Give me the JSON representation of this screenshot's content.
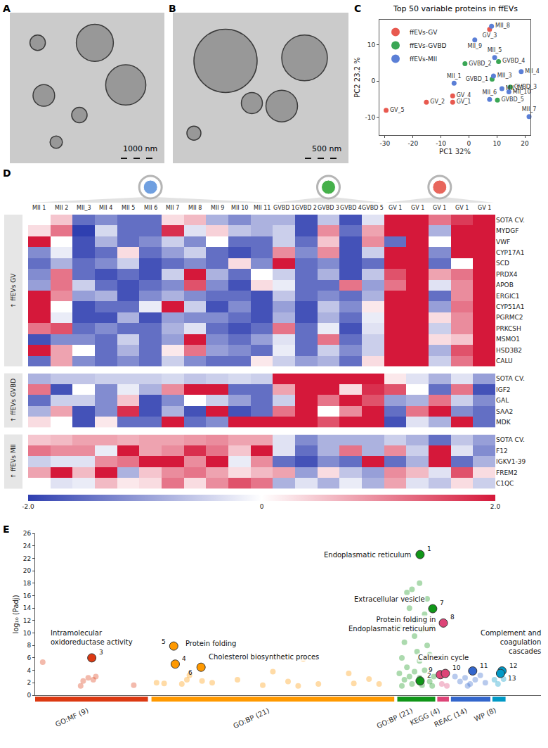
{
  "chart_data": [
    {
      "panel": "A",
      "type": "image",
      "scale_bar": "1000 nm"
    },
    {
      "panel": "B",
      "type": "image",
      "scale_bar": "500 nm"
    },
    {
      "panel": "C",
      "type": "scatter",
      "title": "Top 50 variable proteins in ffEVs",
      "xlabel": "PC1 32%",
      "ylabel": "PC2 23.2 %",
      "xlim": [
        -32,
        22
      ],
      "ylim": [
        -15,
        17
      ],
      "xticks": [
        -30,
        -20,
        -10,
        0,
        10,
        20
      ],
      "yticks": [
        -10,
        0,
        10
      ],
      "grid": false,
      "legend": "top-left",
      "series": [
        {
          "name": "ffEVs-GV",
          "color": "#e8594f",
          "labels": [
            "GV_1",
            "GV_2",
            "GV_3",
            "GV_4",
            "GV_5"
          ],
          "x": [
            -5.8,
            -15.2,
            7.4,
            -5.8,
            -29.6
          ],
          "y": [
            -5.9,
            -5.9,
            14.3,
            -4.1,
            -8.1
          ]
        },
        {
          "name": "ffEVs-GVBD",
          "color": "#3aa655",
          "labels": [
            "GVBD_1",
            "GVBD_2",
            "GVBD_3",
            "GVBD_4",
            "GVBD_5"
          ],
          "x": [
            8.3,
            -1.4,
            14.8,
            10.6,
            10.2
          ],
          "y": [
            0.5,
            4.8,
            -1.7,
            5.4,
            -5.3
          ]
        },
        {
          "name": "ffEVs-MII",
          "color": "#5b7fd6",
          "labels": [
            "MII_1",
            "MII_3",
            "MII_4",
            "MII_5",
            "MII_6",
            "MII_7",
            "MII_8",
            "MII_9",
            "MII_10",
            "MII_11"
          ],
          "x": [
            -5.3,
            8.8,
            18.7,
            9.2,
            7.4,
            21.5,
            8.1,
            2.1,
            14.3,
            11.8
          ],
          "y": [
            -0.6,
            1.4,
            2.6,
            6.5,
            -5.1,
            -9.9,
            15.2,
            11.4,
            -3.0,
            -2.1
          ]
        }
      ]
    },
    {
      "panel": "D",
      "type": "heatmap",
      "columns": [
        "MII 1",
        "MII 2",
        "MII_3",
        "MII 4",
        "MII 5",
        "MII 6",
        "MII 7",
        "MII 8",
        "MII 9",
        "MII 10",
        "MII 11",
        "GVBD 1",
        "GVBD 2",
        "GVBD 3",
        "GVBD 4",
        "GVBD 5",
        "GV 1",
        "GV 1",
        "GV 1",
        "GV 1",
        "GV 1"
      ],
      "column_groups": [
        {
          "count": 11,
          "color": "#6f9fe0"
        },
        {
          "count": 5,
          "color": "#45b04a"
        },
        {
          "count": 5,
          "color": "#e8665c"
        }
      ],
      "zlim": [
        -2,
        2
      ],
      "colorbar_ticks": [
        {
          "value": -2,
          "label": "-2.0"
        },
        0,
        {
          "value": 2,
          "label": "2.0"
        }
      ],
      "row_groups": [
        {
          "label": "↑ ffEVs GV",
          "rows": [
            "SOTA CV.",
            "MYDGF",
            "VWF",
            "CYP17A1",
            "SCD",
            "PRDX4",
            "APOB",
            "ERGIC1",
            "CYP51A1",
            "PGRMC2",
            "PRKCSH",
            "MSMO1",
            "HSD3B2",
            "CALU"
          ],
          "values": [
            [
              0,
              0.5,
              -1.5,
              -1.2,
              -1.5,
              -1.5,
              0.3,
              0.6,
              -0.8,
              -1.2,
              -0.8,
              -0.8,
              -1.8,
              -0.6,
              -1.8,
              -0.3,
              2,
              2,
              1.2,
              1.7,
              2
            ],
            [
              0.3,
              1.2,
              -2,
              -0.4,
              -1.5,
              -1.5,
              1.8,
              -0.3,
              0.4,
              -0.6,
              -0.8,
              -0.5,
              -1.8,
              1,
              -1.5,
              0.8,
              2,
              2,
              -0.8,
              2,
              2
            ],
            [
              2,
              0,
              -1.8,
              -0.8,
              -1.5,
              -1.2,
              -0.5,
              -1.2,
              0,
              -1.5,
              -1.5,
              -0.5,
              -1.5,
              0.5,
              -1.8,
              1,
              -1.5,
              2,
              0,
              2,
              2
            ],
            [
              -1.2,
              -0.2,
              -1.8,
              -1.5,
              0.3,
              -1.5,
              -1,
              -0.5,
              -1.5,
              -1.8,
              -1.5,
              1,
              -1.2,
              1,
              -1.8,
              -0.5,
              2,
              2,
              -1.2,
              2,
              2
            ],
            [
              -1.5,
              -0.8,
              -1.5,
              -1.2,
              -0.5,
              -1.8,
              -1.5,
              -1.2,
              -1.5,
              0.3,
              -1.2,
              2,
              -1.5,
              -1.2,
              -1.8,
              -1.5,
              2,
              2,
              -1.5,
              0,
              2
            ],
            [
              -1.2,
              1.2,
              -1.5,
              -1.8,
              -1.5,
              -1.8,
              -0.5,
              2,
              -0.8,
              -1.5,
              0,
              -0.5,
              -1.5,
              -0.8,
              -1.8,
              -0.6,
              1.5,
              2,
              0.8,
              1.2,
              2
            ],
            [
              -1,
              1.2,
              -0.5,
              -1.5,
              -1.8,
              -1.5,
              -1.2,
              1.5,
              -1.2,
              -1.8,
              0.3,
              -0.2,
              -1.5,
              -1.5,
              1.2,
              -1,
              1.2,
              2,
              -0.3,
              1,
              2
            ],
            [
              2,
              1,
              -1,
              -0.8,
              -1.8,
              -1.2,
              -0.8,
              -1.2,
              -1.5,
              -1.5,
              -1.8,
              -0.6,
              -1.5,
              -1.2,
              -1.5,
              -0.8,
              2,
              2,
              -1.5,
              1,
              2
            ],
            [
              2,
              0,
              -1.8,
              -1.5,
              -1.5,
              -0.2,
              2,
              -0.5,
              -1.8,
              -1.2,
              -1.8,
              -1,
              -1.8,
              -0.6,
              -1.2,
              0.2,
              2,
              2,
              -1,
              1.2,
              2
            ],
            [
              2,
              -0.2,
              -1.8,
              -1.8,
              -0.8,
              -1.8,
              -1,
              -1.2,
              -1.2,
              -1.5,
              -1.8,
              -0.8,
              -1.8,
              -0.8,
              -1.5,
              -0.2,
              2,
              2,
              0.3,
              1,
              2
            ],
            [
              1.2,
              1.5,
              -1.5,
              -1.2,
              -1.5,
              -1.5,
              -0.8,
              -0.3,
              -1.5,
              -1.8,
              -1.5,
              1.2,
              -1.5,
              -0.2,
              -1.8,
              -0.3,
              2,
              2,
              -0.5,
              1,
              2
            ],
            [
              -1.8,
              -1.2,
              -1.2,
              -1.5,
              -0.5,
              -1.5,
              -1,
              2,
              -1.2,
              -1.5,
              -1,
              -0.3,
              -1.5,
              1.2,
              -1.5,
              -0.5,
              2,
              2,
              0.3,
              0.5,
              2
            ],
            [
              2,
              0.8,
              0,
              -1.5,
              -0.8,
              -1.5,
              0.2,
              1.2,
              -1,
              -1.2,
              -1.5,
              -0.2,
              -1.5,
              -0.5,
              -1.2,
              -0.5,
              2,
              2,
              -0.8,
              1.5,
              2
            ],
            [
              -1.5,
              0.8,
              -1.2,
              -1.5,
              -1.2,
              -1.5,
              -0.5,
              -1.2,
              -1.5,
              -1.5,
              0.2,
              -0.5,
              -1,
              -0.8,
              -1.5,
              0.3,
              2,
              2,
              -0.5,
              1.2,
              2
            ]
          ]
        },
        {
          "label": "↑ ffEVs GVBD",
          "rows": [
            "SOTA CV.",
            "IGF2",
            "GAL",
            "SAA2",
            "MDK"
          ],
          "values": [
            [
              -0.8,
              -0.6,
              -0.6,
              -0.5,
              -0.5,
              -0.5,
              -0.4,
              -0.6,
              -0.5,
              -0.4,
              -0.5,
              2,
              2,
              2,
              2,
              2,
              0.2,
              -0.3,
              -0.8,
              -0.3,
              -1
            ],
            [
              1.2,
              -1.8,
              0,
              -1.2,
              -0.2,
              -0.8,
              1,
              2,
              2,
              -1.5,
              -1.5,
              0.8,
              2,
              2,
              0.3,
              1.8,
              1.5,
              0,
              -1.5,
              1.2,
              -1.8
            ],
            [
              -1.5,
              -0.5,
              -0.5,
              -1.2,
              0.5,
              -1.8,
              -1.2,
              0,
              -0.5,
              -1,
              -1.5,
              -0.5,
              2,
              1.2,
              2,
              1.5,
              -1,
              -0.8,
              1.2,
              -0.5,
              -1.2
            ],
            [
              -0.8,
              0.8,
              -1.8,
              -1.2,
              1.8,
              -1.8,
              -0.8,
              -1.8,
              2,
              -1.8,
              -1.5,
              1.2,
              2,
              0,
              1,
              2,
              -1.5,
              1.2,
              2,
              -1.2,
              -1.5
            ],
            [
              0.3,
              0,
              -1.8,
              0.2,
              -1.5,
              -1.5,
              2,
              -1.5,
              -1.2,
              2,
              2,
              2,
              2,
              1.5,
              2,
              2,
              -1.8,
              -0.3,
              -0.8,
              2,
              -1.5
            ]
          ]
        },
        {
          "label": "↑ ffEVs MII",
          "rows": [
            "SOTA CV.",
            "F12",
            "IGKV1-39",
            "FREM2",
            "C1QC"
          ],
          "values": [
            [
              0.5,
              0.6,
              0.8,
              0.8,
              0.7,
              0.8,
              0.8,
              0.9,
              1,
              0.8,
              0.8,
              -0.3,
              -1.2,
              -0.8,
              -0.8,
              -0.8,
              -0.5,
              -0.8,
              -1.5,
              -0.6,
              -1
            ],
            [
              1.2,
              1,
              1,
              -0.2,
              2,
              0.8,
              1,
              1.8,
              1.2,
              0.5,
              2,
              -0.3,
              -1.5,
              -0.8,
              1.2,
              -0.8,
              1,
              -0.5,
              2,
              -0.3,
              -1.2
            ],
            [
              -0.5,
              -0.3,
              -0.3,
              1,
              1.2,
              2,
              2,
              1,
              2,
              -0.2,
              1,
              -1.5,
              -1.8,
              -1.2,
              -1.5,
              2,
              -1.5,
              -0.8,
              2,
              -1.5,
              -0.8
            ],
            [
              0.8,
              2,
              0.6,
              2,
              -0.8,
              0.5,
              1,
              1.2,
              0.8,
              0.3,
              0.6,
              0.8,
              -1,
              0.3,
              -0.6,
              -1,
              1,
              0.6,
              -0.3,
              1.5,
              0.3
            ],
            [
              0,
              -0.3,
              -0.2,
              0.6,
              0.2,
              0.3,
              1.2,
              0.3,
              1,
              1.5,
              1.2,
              -0.8,
              -0.3,
              -0.8,
              -0.2,
              -0.8,
              0.8,
              -0.3,
              -0.6,
              0.3,
              -0.5
            ]
          ]
        }
      ]
    },
    {
      "panel": "E",
      "type": "scatter",
      "ylabel": "log₁₀ (Padj)",
      "xlim": [
        0,
        100
      ],
      "ylim": [
        0,
        26
      ],
      "yticks": [
        0,
        2,
        4,
        6,
        8,
        10,
        12,
        14,
        16,
        18,
        20,
        22,
        24,
        26
      ],
      "grid": false,
      "tick_labels": "y",
      "sources": [
        {
          "name": "GO:MF (9)",
          "color": "#dc3912",
          "range": [
            0,
            22.3
          ],
          "x": [
            1.5,
            9,
            9.5,
            10.5,
            11.5,
            12,
            19.5
          ],
          "y": [
            5.3,
            1.5,
            2.3,
            2.8,
            2.5,
            3.0,
            1.6
          ]
        },
        {
          "name": "GO:BP (21)",
          "color": "#ff9900",
          "range": [
            23,
            71
          ],
          "x": [
            24,
            25.5,
            29,
            30,
            30.5,
            33,
            35,
            40,
            45,
            47,
            50,
            52,
            53,
            56,
            62,
            63,
            66,
            68
          ],
          "y": [
            2.0,
            1.9,
            1.8,
            2.5,
            3.2,
            2.3,
            2.0,
            2.5,
            1.6,
            3.8,
            2.2,
            1.5,
            5.8,
            1.8,
            3.5,
            1.9,
            2.6,
            1.8
          ]
        },
        {
          "name": "GO:BP (21)",
          "color": "#109618",
          "range": [
            71.6,
            79.1
          ],
          "x": [
            72,
            72.5,
            73,
            73.5,
            74,
            74.5,
            75,
            75,
            75.5,
            76,
            76.5,
            77,
            77.5,
            77.5,
            78,
            78.5,
            72,
            73,
            74,
            76,
            77,
            78,
            75,
            78.8,
            72.5,
            74.5,
            76.5,
            78.5,
            73.5,
            76
          ],
          "y": [
            11,
            6,
            8.5,
            4.5,
            14,
            17,
            12,
            9.5,
            7,
            5.5,
            10.5,
            13,
            8,
            15.5,
            6.5,
            11,
            3.5,
            2.5,
            3,
            2.8,
            4,
            2.2,
            3.8,
            3,
            1.5,
            1.8,
            1.6,
            1.5,
            16.5,
            18
          ]
        },
        {
          "name": "KEGG (4)",
          "color": "#dd4477",
          "range": [
            79.5,
            81.8
          ],
          "x": [
            80.4,
            81.4
          ],
          "y": [
            1.8,
            1.5
          ]
        },
        {
          "name": "REAC (14)",
          "color": "#3366cc",
          "range": [
            82.2,
            90
          ],
          "x": [
            83,
            84,
            85,
            86,
            87,
            88,
            89,
            85.5
          ],
          "y": [
            3.0,
            2.2,
            2.8,
            1.8,
            2.5,
            3.2,
            2.0,
            1.5
          ]
        },
        {
          "name": "WP (8)",
          "color": "#0099c6",
          "range": [
            90.4,
            93
          ],
          "x": [
            90.8,
            91.5,
            92.6
          ],
          "y": [
            2.5,
            1.8,
            2.6
          ]
        }
      ],
      "highlighted": [
        {
          "label": "1",
          "term": "Endoplasmatic reticulum",
          "x": 76.1,
          "y": 22.6
        },
        {
          "label": "2",
          "x": 76.1,
          "y": 2.3
        },
        {
          "label": "3",
          "term": "Intramolecular oxidoreductase activity",
          "x": 11.2,
          "y": 6.0
        },
        {
          "label": "4",
          "x": 27.7,
          "y": 5.0
        },
        {
          "label": "5",
          "term": "Protein folding",
          "x": 27.4,
          "y": 7.9
        },
        {
          "label": "6",
          "term": "Cholesterol biosynthetic proces",
          "x": 32.8,
          "y": 4.5
        },
        {
          "label": "7",
          "term": "Extracellular vesicle",
          "x": 78.6,
          "y": 13.9
        },
        {
          "label": "8",
          "term": "Protein folding in Endoplasmatic reticulum",
          "x": 80.7,
          "y": 11.6
        },
        {
          "label": "9",
          "x": 80.1,
          "y": 3.3
        },
        {
          "label": "10",
          "term": "Calnexin cycle",
          "x": 81.1,
          "y": 3.5
        },
        {
          "label": "11",
          "x": 86.5,
          "y": 3.9
        },
        {
          "label": "12",
          "term": "Complement and coagulation cascades",
          "x": 92.3,
          "y": 3.9
        },
        {
          "label": "13",
          "x": 92.0,
          "y": 3.5
        }
      ]
    }
  ]
}
